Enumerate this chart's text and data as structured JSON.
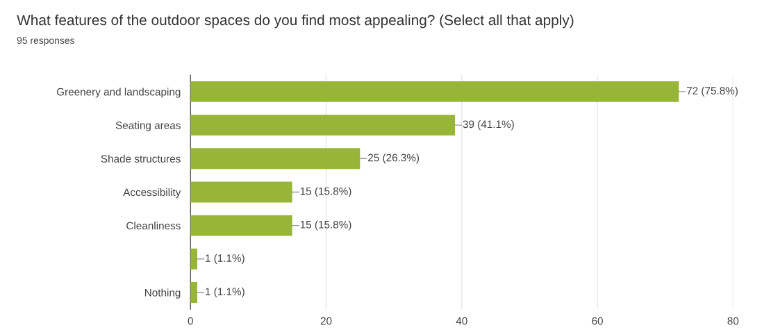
{
  "chart_data": {
    "type": "bar",
    "orientation": "horizontal",
    "title": "What features of the outdoor spaces do you find most appealing? (Select all that apply)",
    "subtitle": "95 responses",
    "categories": [
      "Greenery and landscaping",
      "Seating areas",
      "Shade structures",
      "Accessibility",
      "Cleanliness",
      null,
      "Nothing"
    ],
    "values": [
      72,
      39,
      25,
      15,
      15,
      1,
      1
    ],
    "value_labels": [
      "72 (75.8%)",
      "39 (41.1%)",
      "25 (26.3%)",
      "15 (15.8%)",
      "15 (15.8%)",
      "1 (1.1%)",
      "1 (1.1%)"
    ],
    "color": "#97b637",
    "xlim": [
      0,
      80
    ],
    "xticks": [
      0,
      20,
      40,
      60,
      80
    ],
    "grid": "x",
    "legend": false
  }
}
